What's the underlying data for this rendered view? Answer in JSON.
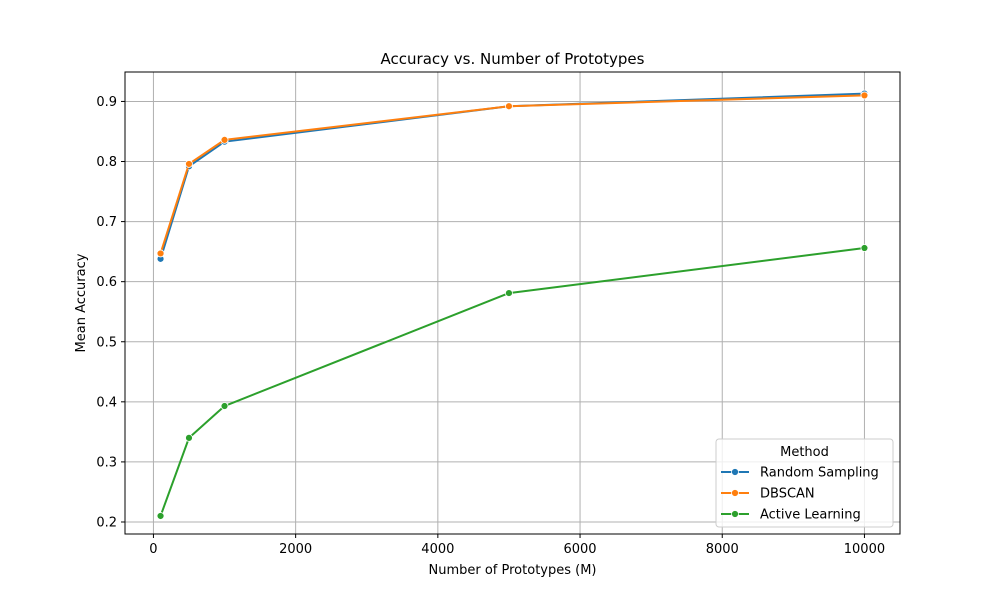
{
  "chart_data": {
    "type": "line",
    "title": "Accuracy vs. Number of Prototypes",
    "xlabel": "Number of Prototypes (M)",
    "ylabel": "Mean Accuracy",
    "xlim": [
      -400,
      10500
    ],
    "ylim": [
      0.18,
      0.949
    ],
    "xticks": [
      0,
      2000,
      4000,
      6000,
      8000,
      10000
    ],
    "xtick_labels": [
      "0",
      "2000",
      "4000",
      "6000",
      "8000",
      "10000"
    ],
    "yticks": [
      0.2,
      0.3,
      0.4,
      0.5,
      0.6,
      0.7,
      0.8,
      0.9
    ],
    "ytick_labels": [
      "0.2",
      "0.3",
      "0.4",
      "0.5",
      "0.6",
      "0.7",
      "0.8",
      "0.9"
    ],
    "grid": true,
    "legend": {
      "title": "Method",
      "position": "lower-right"
    },
    "x": [
      100,
      500,
      1000,
      5000,
      10000
    ],
    "series": [
      {
        "name": "Random Sampling",
        "color": "#1f77b4",
        "values": [
          0.638,
          0.792,
          0.833,
          0.892,
          0.913
        ]
      },
      {
        "name": "DBSCAN",
        "color": "#ff7f0e",
        "values": [
          0.647,
          0.796,
          0.836,
          0.892,
          0.91
        ]
      },
      {
        "name": "Active Learning",
        "color": "#2ca02c",
        "values": [
          0.21,
          0.34,
          0.393,
          0.581,
          0.656
        ]
      }
    ]
  }
}
